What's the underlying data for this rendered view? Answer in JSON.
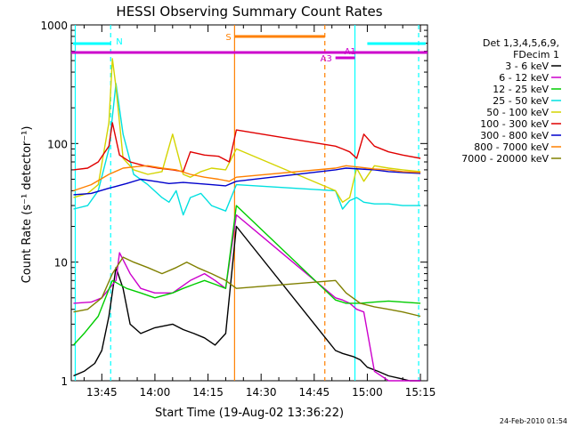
{
  "chart_data": {
    "type": "line",
    "title": "HESSI Observing Summary Count Rates",
    "xlabel": "Start Time (19-Aug-02 13:36:22)",
    "ylabel": "Count Rate (s⁻¹ detector⁻¹)",
    "y_scale": "log",
    "ylim": [
      1,
      1000
    ],
    "xlim": [
      "13:36:22",
      "15:17:00"
    ],
    "x_tick_labels": [
      "13:45",
      "14:00",
      "14:15",
      "14:30",
      "14:45",
      "15:00",
      "15:15"
    ],
    "y_tick_labels": [
      "1",
      "10",
      "100",
      "1000"
    ],
    "date_stamp": "24-Feb-2010 01:54",
    "legend": {
      "header": [
        "Det 1,3,4,5,6,9,",
        "FDecim 1"
      ],
      "placement": "right"
    },
    "series": [
      {
        "name": "3 - 6 keV",
        "color": "#000000",
        "x": [
          "13:37",
          "13:40",
          "13:43",
          "13:45",
          "13:47",
          "13:49",
          "13:51",
          "13:53",
          "13:56",
          "14:00",
          "14:05",
          "14:08",
          "14:11",
          "14:14",
          "14:17",
          "14:20",
          "14:23",
          "14:51",
          "14:53",
          "14:56",
          "14:58",
          "15:00",
          "15:03",
          "15:06",
          "15:09",
          "15:12",
          "15:15"
        ],
        "y": [
          1.1,
          1.2,
          1.4,
          1.8,
          3.5,
          9,
          6,
          3,
          2.5,
          2.8,
          3,
          2.7,
          2.5,
          2.3,
          2,
          2.5,
          20,
          1.8,
          1.7,
          1.6,
          1.5,
          1.3,
          1.2,
          1.1,
          1.05,
          1.0,
          1.0
        ]
      },
      {
        "name": "6 - 12 keV",
        "color": "#cc00cc",
        "x": [
          "13:37",
          "13:42",
          "13:45",
          "13:49",
          "13:50",
          "13:53",
          "13:56",
          "14:00",
          "14:05",
          "14:10",
          "14:14",
          "14:17",
          "14:20",
          "14:23",
          "14:51",
          "14:53",
          "14:55",
          "14:57",
          "14:59",
          "15:02",
          "15:06",
          "15:10",
          "15:15"
        ],
        "y": [
          4.5,
          4.6,
          5,
          7,
          12,
          8,
          6,
          5.5,
          5.5,
          7,
          8,
          7,
          6,
          25,
          5,
          4.8,
          4.5,
          4,
          3.8,
          1.2,
          1.0,
          1.0,
          1.0
        ]
      },
      {
        "name": "12 - 25 keV",
        "color": "#00cc00",
        "x": [
          "13:37",
          "13:40",
          "13:44",
          "13:48",
          "13:52",
          "13:56",
          "14:00",
          "14:05",
          "14:08",
          "14:11",
          "14:14",
          "14:17",
          "14:20",
          "14:23",
          "14:51",
          "14:54",
          "14:58",
          "15:02",
          "15:06",
          "15:10",
          "15:15"
        ],
        "y": [
          2,
          2.5,
          3.5,
          7,
          6,
          5.5,
          5,
          5.5,
          6,
          6.5,
          7,
          6.5,
          6,
          30,
          4.8,
          4.5,
          4.5,
          4.6,
          4.7,
          4.6,
          4.5
        ]
      },
      {
        "name": "25 - 50 keV",
        "color": "#00e0e0",
        "x": [
          "13:37",
          "13:41",
          "13:44",
          "13:47",
          "13:49",
          "13:51",
          "13:54",
          "13:58",
          "14:02",
          "14:04",
          "14:06",
          "14:08",
          "14:10",
          "14:13",
          "14:16",
          "14:20",
          "14:23",
          "14:51",
          "14:53",
          "14:55",
          "14:57",
          "14:59",
          "15:02",
          "15:06",
          "15:10",
          "15:15"
        ],
        "y": [
          28,
          30,
          40,
          90,
          320,
          120,
          55,
          45,
          35,
          32,
          40,
          25,
          35,
          38,
          30,
          27,
          45,
          40,
          28,
          33,
          35,
          32,
          31,
          31,
          30,
          30
        ]
      },
      {
        "name": "50 - 100 keV",
        "color": "#d4d400",
        "x": [
          "13:37",
          "13:41",
          "13:44",
          "13:47",
          "13:48",
          "13:49",
          "13:51",
          "13:54",
          "13:58",
          "14:02",
          "14:05",
          "14:08",
          "14:10",
          "14:13",
          "14:16",
          "14:20",
          "14:23",
          "14:51",
          "14:53",
          "14:55",
          "14:57",
          "14:59",
          "15:02",
          "15:06",
          "15:10",
          "15:15"
        ],
        "y": [
          35,
          38,
          45,
          150,
          520,
          300,
          75,
          60,
          55,
          58,
          120,
          55,
          52,
          58,
          62,
          60,
          90,
          40,
          32,
          35,
          62,
          48,
          65,
          62,
          60,
          58
        ]
      },
      {
        "name": "100 - 300 keV",
        "color": "#e00000",
        "x": [
          "13:37",
          "13:41",
          "13:44",
          "13:47",
          "13:48",
          "13:50",
          "13:53",
          "13:57",
          "14:01",
          "14:05",
          "14:08",
          "14:10",
          "14:14",
          "14:18",
          "14:21",
          "14:23",
          "14:51",
          "14:53",
          "14:55",
          "14:57",
          "14:59",
          "15:02",
          "15:06",
          "15:10",
          "15:15"
        ],
        "y": [
          60,
          62,
          70,
          95,
          150,
          80,
          70,
          65,
          62,
          60,
          58,
          85,
          80,
          78,
          70,
          130,
          95,
          90,
          85,
          75,
          120,
          95,
          85,
          80,
          75
        ]
      },
      {
        "name": "300 - 800 keV",
        "color": "#0000cc",
        "x": [
          "13:37",
          "13:42",
          "13:47",
          "13:52",
          "13:56",
          "14:00",
          "14:04",
          "14:08",
          "14:12",
          "14:16",
          "14:20",
          "14:23",
          "14:51",
          "14:54",
          "14:58",
          "15:02",
          "15:06",
          "15:10",
          "15:15"
        ],
        "y": [
          37,
          38,
          42,
          46,
          50,
          48,
          46,
          47,
          46,
          45,
          44,
          48,
          60,
          62,
          61,
          60,
          58,
          57,
          56
        ]
      },
      {
        "name": "800 - 7000 keV",
        "color": "#ff8000",
        "x": [
          "13:37",
          "13:42",
          "13:47",
          "13:51",
          "13:55",
          "13:58",
          "14:02",
          "14:06",
          "14:10",
          "14:14",
          "14:18",
          "14:21",
          "14:23",
          "14:51",
          "14:54",
          "14:58",
          "15:02",
          "15:06",
          "15:10",
          "15:15"
        ],
        "y": [
          40,
          45,
          55,
          62,
          64,
          65,
          62,
          60,
          55,
          52,
          50,
          48,
          52,
          62,
          65,
          63,
          61,
          60,
          58,
          57
        ]
      },
      {
        "name": "7000 - 20000 keV",
        "color": "#808000",
        "x": [
          "13:37",
          "13:41",
          "13:45",
          "13:48",
          "13:51",
          "13:54",
          "13:58",
          "14:02",
          "14:06",
          "14:09",
          "14:12",
          "14:16",
          "14:20",
          "14:23",
          "14:51",
          "14:54",
          "14:58",
          "15:02",
          "15:06",
          "15:10",
          "15:15"
        ],
        "y": [
          3.8,
          4,
          5,
          8,
          11,
          10,
          9,
          8,
          9,
          10,
          9,
          8,
          7,
          6,
          7,
          5.5,
          4.5,
          4.2,
          4,
          3.8,
          3.5
        ]
      }
    ],
    "annotations": [
      {
        "label": "N",
        "kind": "night",
        "color": "#00ffff",
        "intervals": [
          [
            "13:36:22",
            "13:47:30"
          ],
          [
            "15:00:00",
            "15:17:00"
          ]
        ]
      },
      {
        "label": "S",
        "kind": "SAA",
        "color": "#ff8000",
        "intervals": [
          [
            "14:22:30",
            "14:48:00"
          ]
        ]
      },
      {
        "label": "A1",
        "kind": "attenuator",
        "color": "#cc00cc",
        "intervals": [
          [
            "13:36:22",
            "15:17:00"
          ]
        ]
      },
      {
        "label": "A3",
        "kind": "attenuator",
        "color": "#cc00cc",
        "intervals": [
          [
            "14:51:00",
            "14:56:30"
          ]
        ]
      }
    ],
    "vlines": [
      {
        "time": "13:37:30",
        "color": "#00ffff",
        "style": "solid"
      },
      {
        "time": "13:47:30",
        "color": "#00ffff",
        "style": "dashed"
      },
      {
        "time": "14:22:30",
        "color": "#ff8000",
        "style": "solid"
      },
      {
        "time": "14:48:00",
        "color": "#ff8000",
        "style": "dashed"
      },
      {
        "time": "14:56:30",
        "color": "#00ffff",
        "style": "solid"
      },
      {
        "time": "15:14:30",
        "color": "#00ffff",
        "style": "dashed"
      }
    ]
  }
}
